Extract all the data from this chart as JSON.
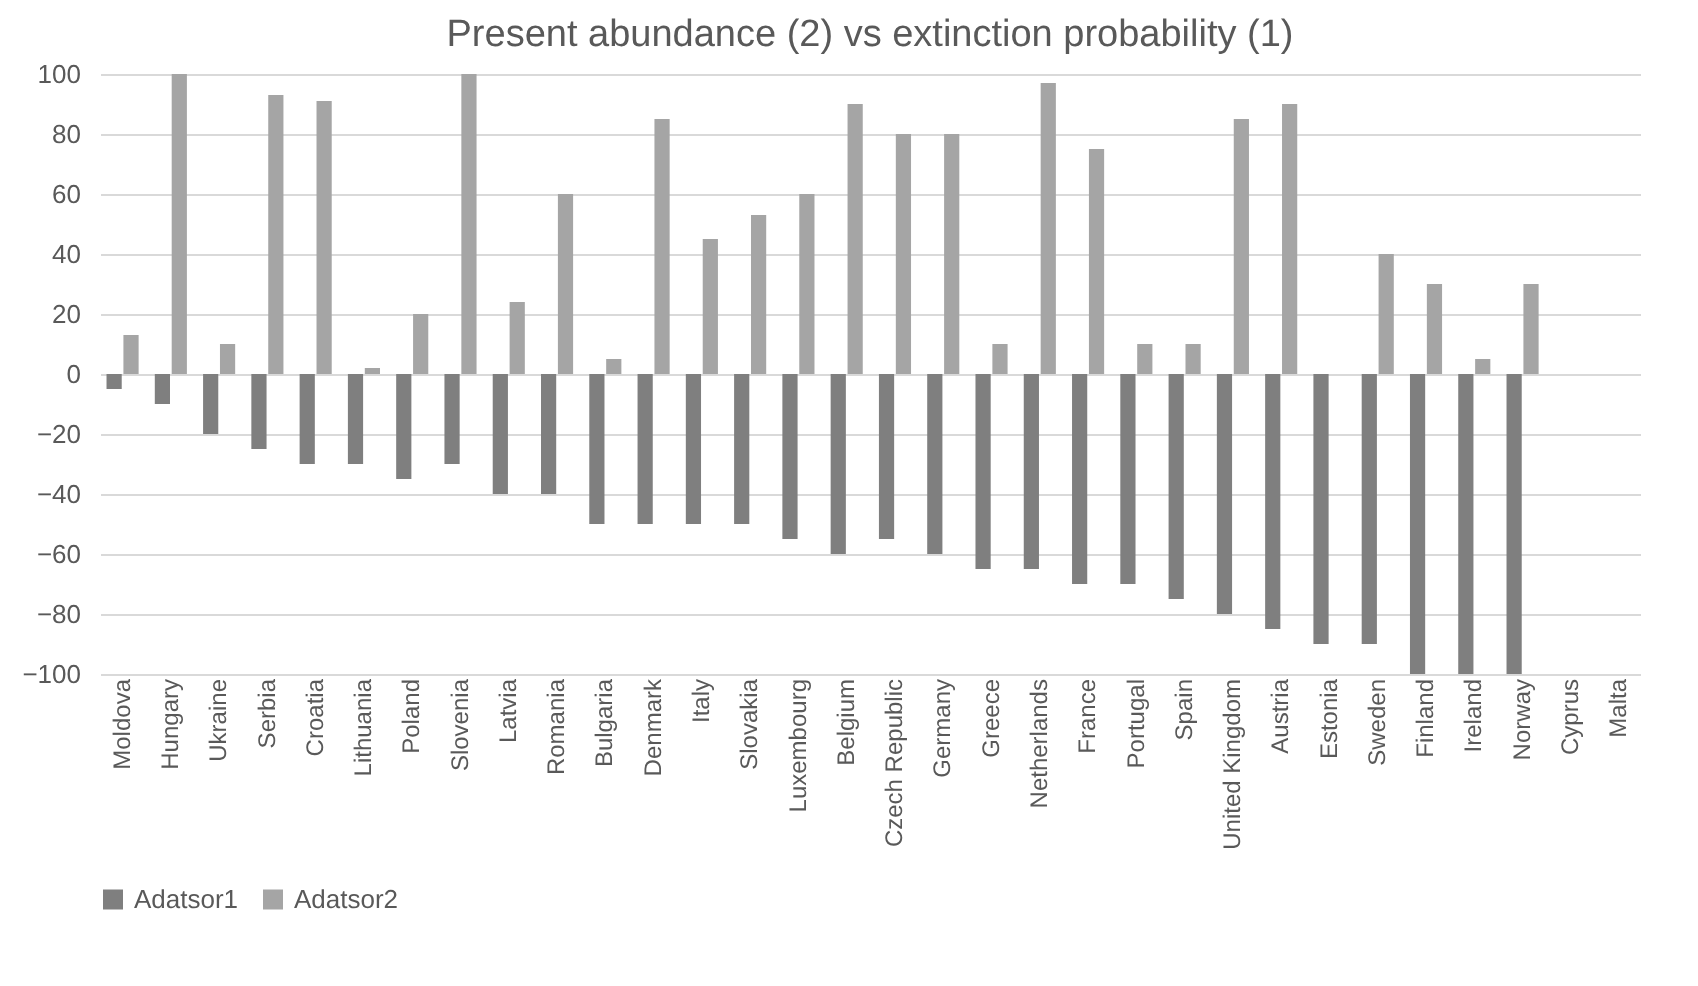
{
  "chart_data": {
    "type": "bar",
    "title": "Present abundance (2) vs extinction probability (1)",
    "categories": [
      "Moldova",
      "Hungary",
      "Ukraine",
      "Serbia",
      "Croatia",
      "Lithuania",
      "Poland",
      "Slovenia",
      "Latvia",
      "Romania",
      "Bulgaria",
      "Denmark",
      "Italy",
      "Slovakia",
      "Luxembourg",
      "Belgium",
      "Czech Republic",
      "Germany",
      "Greece",
      "Netherlands",
      "France",
      "Portugal",
      "Spain",
      "United Kingdom",
      "Austria",
      "Estonia",
      "Sweden",
      "Finland",
      "Ireland",
      "Norway",
      "Cyprus",
      "Malta"
    ],
    "series": [
      {
        "name": "Adatsor1",
        "color": "#7f7f7f",
        "values": [
          -5,
          -10,
          -20,
          -25,
          -30,
          -30,
          -35,
          -30,
          -40,
          -40,
          -50,
          -50,
          -50,
          -50,
          -55,
          -60,
          -55,
          -60,
          -65,
          -65,
          -70,
          -70,
          -75,
          -80,
          -85,
          -90,
          -90,
          -100,
          -100,
          -100,
          0,
          0
        ]
      },
      {
        "name": "Adatsor2",
        "color": "#a5a5a5",
        "values": [
          13,
          100,
          10,
          93,
          91,
          2,
          20,
          100,
          24,
          60,
          5,
          85,
          45,
          53,
          60,
          90,
          80,
          80,
          10,
          97,
          75,
          10,
          10,
          85,
          90,
          0,
          40,
          30,
          5,
          30,
          0,
          0
        ]
      }
    ],
    "ylim": [
      -100,
      100
    ],
    "yticks": [
      -100,
      -80,
      -60,
      -40,
      -20,
      0,
      20,
      40,
      60,
      80,
      100
    ],
    "grid": "y",
    "legend": "bottom"
  }
}
